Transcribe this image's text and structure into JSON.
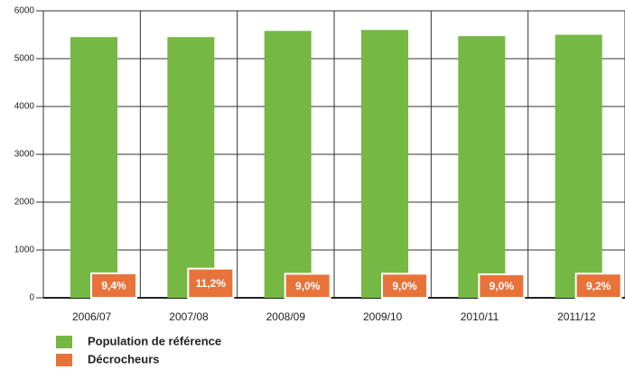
{
  "chart_data": {
    "type": "bar",
    "categories": [
      "2006/07",
      "2007/08",
      "2008/09",
      "2009/10",
      "2010/11",
      "2011/12"
    ],
    "series": [
      {
        "name": "Population de référence",
        "color": "#75b843",
        "values": [
          5450,
          5450,
          5580,
          5600,
          5470,
          5500
        ]
      },
      {
        "name": "Décrocheurs",
        "color": "#e8733a",
        "values": [
          512,
          610,
          502,
          504,
          492,
          506
        ],
        "labels": [
          "9,4%",
          "11,2%",
          "9,0%",
          "9,0%",
          "9,0%",
          "9,2%"
        ]
      }
    ],
    "ylim": [
      0,
      6000
    ],
    "yticks": [
      0,
      1000,
      2000,
      3000,
      4000,
      5000,
      6000
    ],
    "grid": true
  }
}
